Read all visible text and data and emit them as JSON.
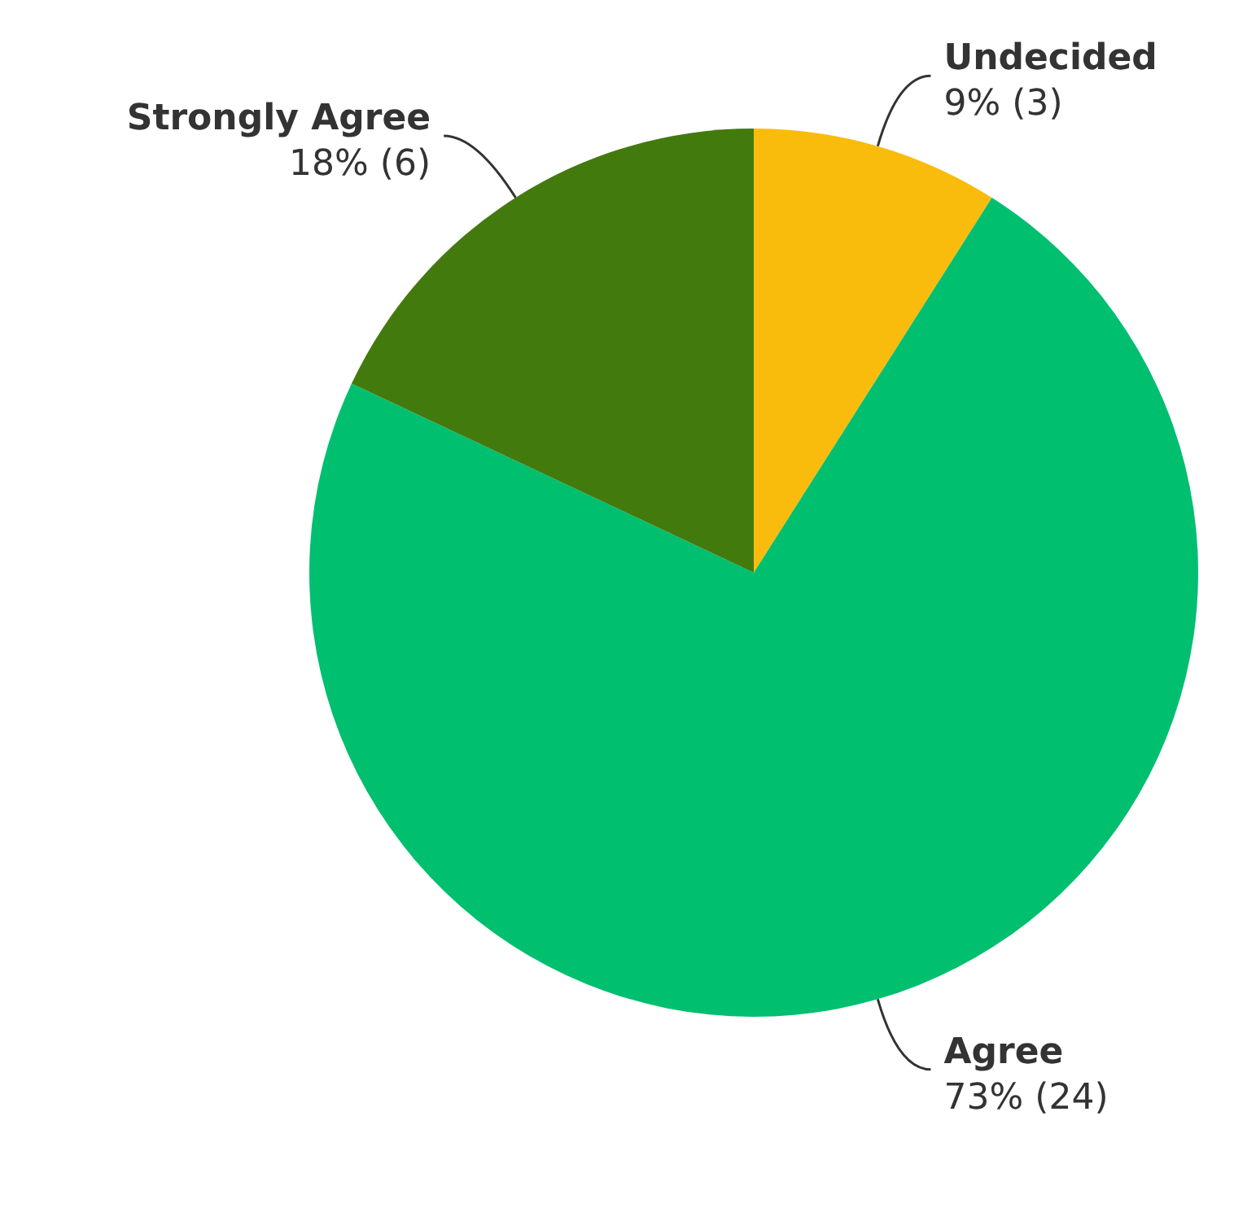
{
  "chart_data": {
    "type": "pie",
    "categories": [
      "Undecided",
      "Agree",
      "Strongly Agree"
    ],
    "values": [
      9,
      73,
      18
    ],
    "colors": [
      "#f9bc0c",
      "#00bf6f",
      "#437a0e"
    ],
    "value_labels": [
      "9% (3)",
      "73% (24)",
      "18% (6)"
    ]
  }
}
